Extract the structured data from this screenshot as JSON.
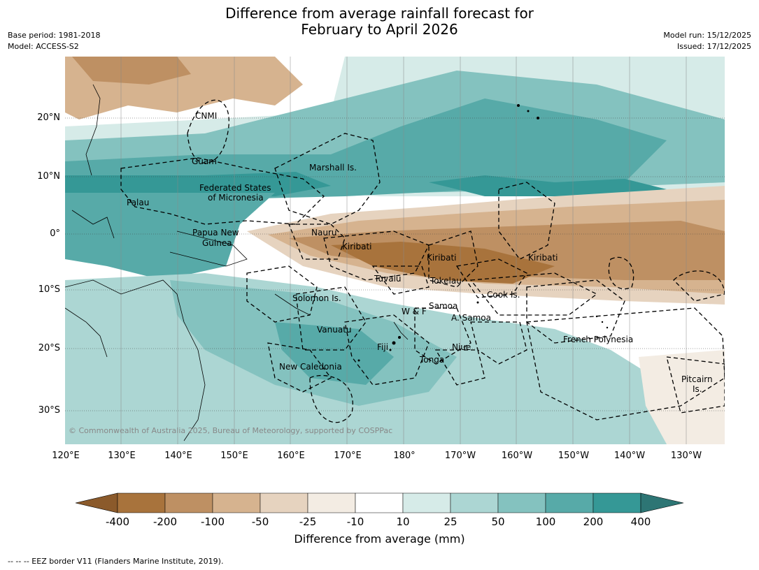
{
  "title": {
    "line1": "Difference from average rainfall forecast for",
    "line2": "February to April 2026"
  },
  "meta": {
    "base_period": "Base period: 1981-2018",
    "model": "Model: ACCESS-S2",
    "model_run": "Model run: 15/12/2025",
    "issued": "Issued: 17/12/2025"
  },
  "axes": {
    "lat_labels": [
      "20°N",
      "10°N",
      "0°",
      "10°S",
      "20°S",
      "30°S"
    ],
    "lon_labels": [
      "120°E",
      "130°E",
      "140°E",
      "150°E",
      "160°E",
      "170°E",
      "180°",
      "170°W",
      "160°W",
      "150°W",
      "140°W",
      "130°W"
    ]
  },
  "regions": [
    "CNMI",
    "Guam",
    "Marshall Is.",
    "Federated States",
    "of Micronesia",
    "Palau",
    "Papua New",
    "Guinea",
    "Nauru",
    "Kiribati",
    "Kiribati",
    "Kiribati",
    "Tuvalu",
    "Tokelau",
    "Cook Is.",
    "Solomon Is.",
    "W & F",
    "Samoa",
    "A. Samoa",
    "Vanuatu",
    "Fiji",
    "Niue",
    "Tonga",
    "French Polynesia",
    "New Caledonia",
    "Pitcairn",
    "Is."
  ],
  "copyright": "© Commonwealth of Australia 2025, Bureau of Meteorology, supported by COSPPac",
  "colorbar": {
    "title": "Difference from average (mm)",
    "ticks": [
      "-400",
      "-200",
      "-100",
      "-50",
      "-25",
      "-10",
      "10",
      "25",
      "50",
      "100",
      "200",
      "400"
    ],
    "colors": [
      "#8b5a2b",
      "#a8733c",
      "#be9063",
      "#d6b38f",
      "#e6d3bf",
      "#f3ece3",
      "#ffffff",
      "#d6ebe8",
      "#acd6d3",
      "#84c2bf",
      "#57aaa8",
      "#359896",
      "#2d7574"
    ]
  },
  "footnote": "--  --  -- EEZ border V11 (Flanders Marine Institute, 2019).",
  "map": {
    "lat_range": [
      -36,
      31
    ],
    "lon_range": [
      120,
      237
    ],
    "contours": [
      {
        "id": "west-pacific-wet",
        "level": "100"
      },
      {
        "id": "north-wet-band",
        "level": "200"
      },
      {
        "id": "equatorial-dry-band",
        "level": "-200"
      },
      {
        "id": "central-dry-core",
        "level": "-400"
      },
      {
        "id": "south-pacific-wet",
        "level": "50"
      },
      {
        "id": "north-dry-patch",
        "level": "-50"
      }
    ]
  }
}
